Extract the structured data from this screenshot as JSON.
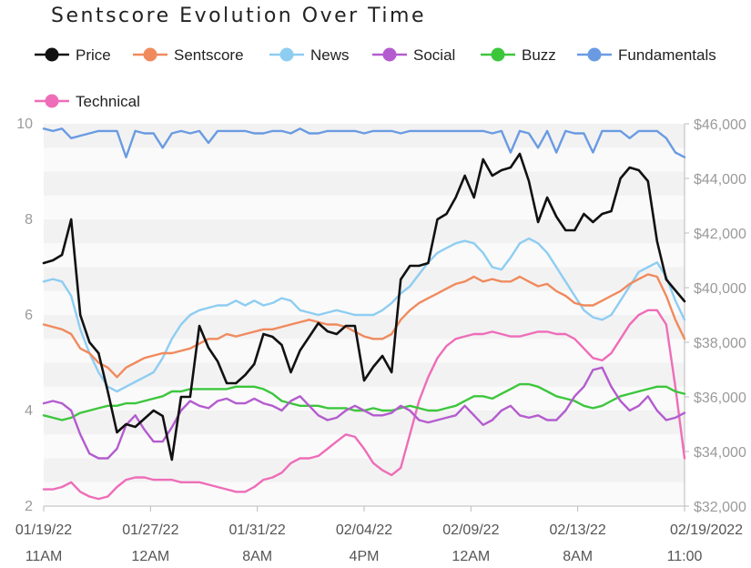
{
  "chart_data": {
    "type": "line",
    "title": "Sentscore Evolution Over Time",
    "legend_position": "top",
    "grid": true,
    "y_left": {
      "range": [
        2,
        10
      ],
      "ticks": [
        "10",
        "8",
        "6",
        "4",
        "2"
      ]
    },
    "y_right": {
      "range": [
        32000,
        46000
      ],
      "ticks": [
        "$46,000",
        "$44,000",
        "$42,000",
        "$40,000",
        "$38,000",
        "$36,000",
        "$34,000",
        "$32,000"
      ]
    },
    "x_ticks": [
      {
        "line1": "01/19/22",
        "line2": "11AM"
      },
      {
        "line1": "01/27/22",
        "line2": "12AM"
      },
      {
        "line1": "01/31/22",
        "line2": "8AM"
      },
      {
        "line1": "02/04/22",
        "line2": "4PM"
      },
      {
        "line1": "02/09/22",
        "line2": "12AM"
      },
      {
        "line1": "02/13/22",
        "line2": "8AM"
      },
      {
        "line1": "02/19/2022",
        "line2": "11:00"
      }
    ],
    "series": [
      {
        "name": "Price",
        "axis": "right",
        "color": "#000000",
        "values": [
          40900,
          41000,
          41200,
          42500,
          39000,
          38000,
          37600,
          36200,
          34700,
          35000,
          34900,
          35200,
          35500,
          35300,
          33700,
          36000,
          36000,
          38600,
          37800,
          37300,
          36500,
          36500,
          36800,
          37200,
          38300,
          38200,
          37900,
          36900,
          37700,
          38200,
          38700,
          38400,
          38300,
          38600,
          38600,
          36600,
          37100,
          37500,
          36900,
          40300,
          40800,
          40800,
          40900,
          42500,
          42700,
          43300,
          44100,
          43300,
          44700,
          44100,
          44300,
          44400,
          44900,
          43900,
          42400,
          43300,
          42600,
          42100,
          42100,
          42700,
          42400,
          42700,
          42800,
          44000,
          44400,
          44300,
          43900,
          41700,
          40300,
          39900,
          39500
        ]
      },
      {
        "name": "Sentscore",
        "axis": "left",
        "values": [
          5.8,
          5.75,
          5.7,
          5.6,
          5.3,
          5.2,
          5.0,
          4.9,
          4.7,
          4.9,
          5.0,
          5.1,
          5.15,
          5.2,
          5.2,
          5.25,
          5.3,
          5.4,
          5.5,
          5.5,
          5.6,
          5.55,
          5.6,
          5.65,
          5.7,
          5.7,
          5.75,
          5.8,
          5.85,
          5.9,
          5.85,
          5.8,
          5.8,
          5.75,
          5.65,
          5.55,
          5.5,
          5.5,
          5.6,
          5.9,
          6.1,
          6.25,
          6.35,
          6.45,
          6.55,
          6.65,
          6.7,
          6.8,
          6.7,
          6.75,
          6.7,
          6.7,
          6.8,
          6.7,
          6.6,
          6.65,
          6.5,
          6.4,
          6.25,
          6.2,
          6.2,
          6.3,
          6.4,
          6.5,
          6.65,
          6.75,
          6.85,
          6.8,
          6.4,
          5.9,
          5.5
        ]
      },
      {
        "name": "News",
        "axis": "left",
        "values": [
          6.7,
          6.75,
          6.7,
          6.4,
          5.7,
          5.2,
          4.8,
          4.5,
          4.4,
          4.5,
          4.6,
          4.7,
          4.8,
          5.1,
          5.5,
          5.8,
          6.0,
          6.1,
          6.15,
          6.2,
          6.2,
          6.3,
          6.2,
          6.3,
          6.2,
          6.25,
          6.35,
          6.3,
          6.1,
          6.05,
          6.0,
          6.05,
          6.1,
          6.05,
          6.0,
          6.0,
          6.0,
          6.1,
          6.25,
          6.45,
          6.6,
          6.85,
          7.1,
          7.3,
          7.4,
          7.5,
          7.55,
          7.5,
          7.3,
          7.0,
          6.95,
          7.2,
          7.5,
          7.6,
          7.5,
          7.3,
          7.0,
          6.7,
          6.4,
          6.1,
          5.95,
          5.9,
          6.0,
          6.3,
          6.6,
          6.9,
          7.0,
          7.1,
          6.8,
          6.3,
          5.9
        ]
      },
      {
        "name": "Social",
        "axis": "left",
        "values": [
          4.15,
          4.2,
          4.15,
          4.0,
          3.5,
          3.1,
          3.0,
          3.0,
          3.2,
          3.7,
          3.9,
          3.6,
          3.35,
          3.35,
          3.65,
          4.0,
          4.2,
          4.1,
          4.05,
          4.2,
          4.25,
          4.15,
          4.15,
          4.25,
          4.15,
          4.1,
          4.0,
          4.2,
          4.3,
          4.1,
          3.9,
          3.8,
          3.85,
          4.0,
          4.1,
          4.0,
          3.9,
          3.9,
          3.95,
          4.1,
          4.0,
          3.8,
          3.75,
          3.8,
          3.85,
          3.9,
          4.1,
          3.9,
          3.7,
          3.8,
          4.0,
          4.1,
          3.9,
          3.85,
          3.9,
          3.8,
          3.8,
          4.0,
          4.3,
          4.5,
          4.85,
          4.9,
          4.5,
          4.2,
          4.0,
          4.1,
          4.3,
          4.0,
          3.8,
          3.85,
          3.95
        ]
      },
      {
        "name": "Buzz",
        "axis": "left",
        "values": [
          3.9,
          3.85,
          3.8,
          3.85,
          3.95,
          4.0,
          4.05,
          4.1,
          4.1,
          4.15,
          4.15,
          4.2,
          4.25,
          4.3,
          4.4,
          4.4,
          4.45,
          4.45,
          4.45,
          4.45,
          4.45,
          4.5,
          4.5,
          4.5,
          4.45,
          4.35,
          4.2,
          4.15,
          4.1,
          4.1,
          4.1,
          4.05,
          4.05,
          4.05,
          4.0,
          4.0,
          4.05,
          4.0,
          4.0,
          4.05,
          4.1,
          4.05,
          4.0,
          4.0,
          4.05,
          4.1,
          4.2,
          4.3,
          4.3,
          4.25,
          4.35,
          4.45,
          4.55,
          4.55,
          4.5,
          4.4,
          4.3,
          4.25,
          4.2,
          4.1,
          4.05,
          4.1,
          4.2,
          4.3,
          4.35,
          4.4,
          4.45,
          4.5,
          4.5,
          4.4,
          4.35
        ]
      },
      {
        "name": "Fundamentals",
        "axis": "left",
        "values": [
          9.9,
          9.85,
          9.9,
          9.7,
          9.75,
          9.8,
          9.85,
          9.85,
          9.85,
          9.3,
          9.85,
          9.8,
          9.8,
          9.5,
          9.8,
          9.85,
          9.8,
          9.85,
          9.6,
          9.85,
          9.85,
          9.85,
          9.85,
          9.8,
          9.8,
          9.85,
          9.85,
          9.8,
          9.9,
          9.8,
          9.8,
          9.85,
          9.85,
          9.85,
          9.85,
          9.8,
          9.85,
          9.85,
          9.85,
          9.8,
          9.85,
          9.85,
          9.85,
          9.85,
          9.85,
          9.85,
          9.85,
          9.85,
          9.85,
          9.8,
          9.85,
          9.4,
          9.85,
          9.8,
          9.5,
          9.85,
          9.4,
          9.85,
          9.8,
          9.8,
          9.4,
          9.85,
          9.85,
          9.85,
          9.7,
          9.85,
          9.85,
          9.85,
          9.7,
          9.4,
          9.3
        ]
      },
      {
        "name": "Technical",
        "axis": "left",
        "values": [
          2.35,
          2.35,
          2.4,
          2.5,
          2.3,
          2.2,
          2.15,
          2.2,
          2.4,
          2.55,
          2.6,
          2.6,
          2.55,
          2.55,
          2.55,
          2.5,
          2.5,
          2.5,
          2.45,
          2.4,
          2.35,
          2.3,
          2.3,
          2.4,
          2.55,
          2.6,
          2.7,
          2.9,
          3.0,
          3.0,
          3.05,
          3.2,
          3.35,
          3.5,
          3.45,
          3.2,
          2.9,
          2.75,
          2.65,
          2.8,
          3.5,
          4.2,
          4.7,
          5.1,
          5.35,
          5.5,
          5.55,
          5.6,
          5.6,
          5.65,
          5.6,
          5.55,
          5.55,
          5.6,
          5.65,
          5.65,
          5.6,
          5.6,
          5.5,
          5.3,
          5.1,
          5.05,
          5.2,
          5.5,
          5.8,
          6.0,
          6.1,
          6.1,
          5.8,
          4.5,
          3.0
        ]
      }
    ],
    "colors": {
      "Price": "#111111",
      "Sentscore": "#f08a5d",
      "News": "#8ecdf2",
      "Social": "#b45ccf",
      "Buzz": "#3cc63c",
      "Fundamentals": "#6a9be2",
      "Technical": "#ee6db8"
    }
  }
}
